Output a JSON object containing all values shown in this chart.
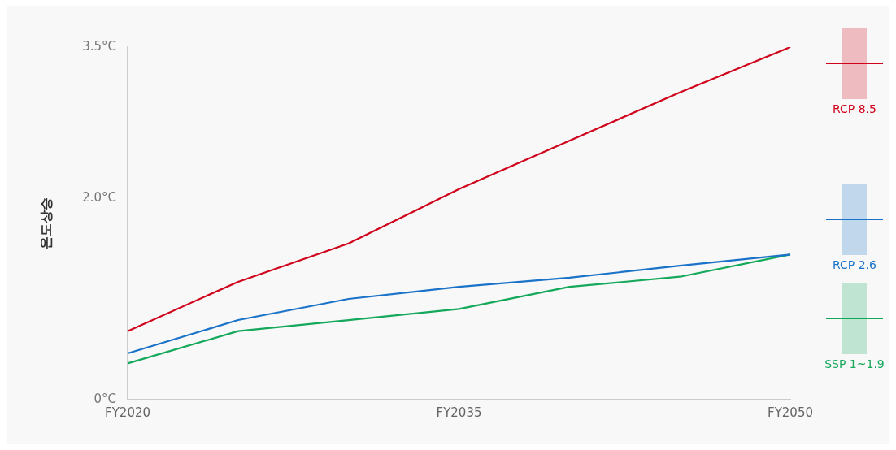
{
  "chart_data": {
    "type": "line",
    "ylabel": "온도상승",
    "categories": [
      "FY2020",
      null,
      null,
      "FY2035",
      null,
      null,
      "FY2050"
    ],
    "series": [
      {
        "name": "RCP 8.5",
        "color": "#d0021b",
        "values": [
          0.68,
          1.17,
          1.55,
          2.09,
          2.57,
          3.05,
          3.5
        ]
      },
      {
        "name": "RCP 2.6",
        "color": "#1a73c8",
        "values": [
          0.46,
          0.79,
          1.0,
          1.12,
          1.21,
          1.33,
          1.44
        ]
      },
      {
        "name": "SSP 1~1.9",
        "color": "#14a85a",
        "values": [
          0.36,
          0.68,
          0.79,
          0.9,
          1.12,
          1.22,
          1.44
        ]
      }
    ],
    "ylim": [
      0,
      3.5
    ],
    "yticks": [
      {
        "value": 0,
        "label": "0°C"
      },
      {
        "value": 2,
        "label": "2.0°C"
      },
      {
        "value": 3.5,
        "label": "3.5°C"
      }
    ],
    "grid": false,
    "legend": "right",
    "marker": "none",
    "line_style": "solid"
  }
}
